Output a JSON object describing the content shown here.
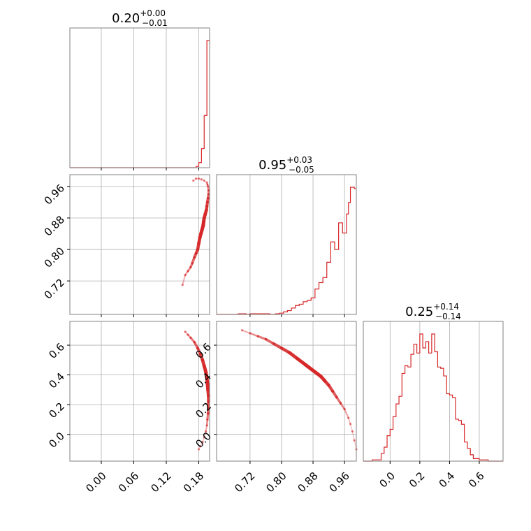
{
  "chart_data": [
    {
      "type": "histogram",
      "panel": "1,1",
      "title": {
        "value": "0.20",
        "plus": "+0.00",
        "minus": "−0.01"
      },
      "x_ticks": [
        "0.00",
        "0.06",
        "0.12",
        "0.18"
      ],
      "xlim": [
        -0.058,
        0.2
      ],
      "grid": true,
      "line_color": "#d62728",
      "bins": [
        {
          "x0": -0.058,
          "x1": 0.175,
          "h": 0.0
        },
        {
          "x0": 0.175,
          "x1": 0.18,
          "h": 0.01
        },
        {
          "x0": 0.18,
          "x1": 0.185,
          "h": 0.04
        },
        {
          "x0": 0.185,
          "x1": 0.19,
          "h": 0.15
        },
        {
          "x0": 0.19,
          "x1": 0.195,
          "h": 0.41
        },
        {
          "x0": 0.195,
          "x1": 0.2,
          "h": 1.0
        }
      ]
    },
    {
      "type": "histogram",
      "panel": "2,2",
      "title": {
        "value": "0.95",
        "plus": "+0.03",
        "minus": "−0.05"
      },
      "x_ticks": [
        "0.72",
        "0.80",
        "0.88",
        "0.96"
      ],
      "xlim": [
        0.635,
        0.99
      ],
      "grid": true,
      "line_color": "#d62728",
      "bins": [
        {
          "x0": 0.635,
          "x1": 0.69,
          "h": 0.0
        },
        {
          "x0": 0.69,
          "x1": 0.71,
          "h": 0.005
        },
        {
          "x0": 0.71,
          "x1": 0.72,
          "h": 0.0
        },
        {
          "x0": 0.72,
          "x1": 0.77,
          "h": 0.005
        },
        {
          "x0": 0.77,
          "x1": 0.785,
          "h": 0.0
        },
        {
          "x0": 0.785,
          "x1": 0.795,
          "h": 0.005
        },
        {
          "x0": 0.795,
          "x1": 0.805,
          "h": 0.01
        },
        {
          "x0": 0.805,
          "x1": 0.815,
          "h": 0.02
        },
        {
          "x0": 0.815,
          "x1": 0.825,
          "h": 0.03
        },
        {
          "x0": 0.825,
          "x1": 0.835,
          "h": 0.05
        },
        {
          "x0": 0.835,
          "x1": 0.845,
          "h": 0.07
        },
        {
          "x0": 0.845,
          "x1": 0.855,
          "h": 0.08
        },
        {
          "x0": 0.855,
          "x1": 0.865,
          "h": 0.1
        },
        {
          "x0": 0.865,
          "x1": 0.875,
          "h": 0.11
        },
        {
          "x0": 0.875,
          "x1": 0.885,
          "h": 0.13
        },
        {
          "x0": 0.885,
          "x1": 0.895,
          "h": 0.2
        },
        {
          "x0": 0.895,
          "x1": 0.905,
          "h": 0.25
        },
        {
          "x0": 0.905,
          "x1": 0.915,
          "h": 0.29
        },
        {
          "x0": 0.915,
          "x1": 0.925,
          "h": 0.41
        },
        {
          "x0": 0.925,
          "x1": 0.935,
          "h": 0.57
        },
        {
          "x0": 0.935,
          "x1": 0.945,
          "h": 0.51
        },
        {
          "x0": 0.945,
          "x1": 0.955,
          "h": 0.72
        },
        {
          "x0": 0.955,
          "x1": 0.965,
          "h": 0.64
        },
        {
          "x0": 0.965,
          "x1": 0.97,
          "h": 0.79
        },
        {
          "x0": 0.97,
          "x1": 0.975,
          "h": 0.88
        },
        {
          "x0": 0.975,
          "x1": 0.985,
          "h": 1.0
        },
        {
          "x0": 0.985,
          "x1": 0.99,
          "h": 0.99
        }
      ]
    },
    {
      "type": "histogram",
      "panel": "3,3",
      "title": {
        "value": "0.25",
        "plus": "+0.14",
        "minus": "−0.14"
      },
      "x_ticks": [
        "0.0",
        "0.2",
        "0.4",
        "0.6"
      ],
      "xlim": [
        -0.18,
        0.76
      ],
      "grid": true,
      "line_color": "#d62728",
      "bins": [
        {
          "x0": -0.18,
          "x1": -0.12,
          "h": 0.0
        },
        {
          "x0": -0.12,
          "x1": -0.06,
          "h": 0.01
        },
        {
          "x0": -0.06,
          "x1": -0.04,
          "h": 0.06
        },
        {
          "x0": -0.04,
          "x1": -0.02,
          "h": 0.11
        },
        {
          "x0": -0.02,
          "x1": 0.0,
          "h": 0.2
        },
        {
          "x0": 0.0,
          "x1": 0.02,
          "h": 0.25
        },
        {
          "x0": 0.02,
          "x1": 0.04,
          "h": 0.35
        },
        {
          "x0": 0.04,
          "x1": 0.06,
          "h": 0.45
        },
        {
          "x0": 0.06,
          "x1": 0.08,
          "h": 0.51
        },
        {
          "x0": 0.08,
          "x1": 0.1,
          "h": 0.69
        },
        {
          "x0": 0.1,
          "x1": 0.12,
          "h": 0.75
        },
        {
          "x0": 0.12,
          "x1": 0.14,
          "h": 0.74
        },
        {
          "x0": 0.14,
          "x1": 0.16,
          "h": 0.84
        },
        {
          "x0": 0.16,
          "x1": 0.18,
          "h": 0.92
        },
        {
          "x0": 0.18,
          "x1": 0.2,
          "h": 0.85
        },
        {
          "x0": 0.2,
          "x1": 0.22,
          "h": 1.0
        },
        {
          "x0": 0.22,
          "x1": 0.24,
          "h": 0.89
        },
        {
          "x0": 0.24,
          "x1": 0.26,
          "h": 0.94
        },
        {
          "x0": 0.26,
          "x1": 0.28,
          "h": 0.85
        },
        {
          "x0": 0.28,
          "x1": 0.3,
          "h": 1.0
        },
        {
          "x0": 0.3,
          "x1": 0.32,
          "h": 0.86
        },
        {
          "x0": 0.32,
          "x1": 0.34,
          "h": 0.74
        },
        {
          "x0": 0.34,
          "x1": 0.36,
          "h": 0.73
        },
        {
          "x0": 0.36,
          "x1": 0.38,
          "h": 0.67
        },
        {
          "x0": 0.38,
          "x1": 0.4,
          "h": 0.53
        },
        {
          "x0": 0.4,
          "x1": 0.42,
          "h": 0.52
        },
        {
          "x0": 0.42,
          "x1": 0.44,
          "h": 0.5
        },
        {
          "x0": 0.44,
          "x1": 0.46,
          "h": 0.33
        },
        {
          "x0": 0.46,
          "x1": 0.48,
          "h": 0.32
        },
        {
          "x0": 0.48,
          "x1": 0.5,
          "h": 0.29
        },
        {
          "x0": 0.5,
          "x1": 0.52,
          "h": 0.15
        },
        {
          "x0": 0.52,
          "x1": 0.54,
          "h": 0.1
        },
        {
          "x0": 0.54,
          "x1": 0.56,
          "h": 0.05
        },
        {
          "x0": 0.56,
          "x1": 0.6,
          "h": 0.02
        },
        {
          "x0": 0.6,
          "x1": 0.66,
          "h": 0.01
        },
        {
          "x0": 0.66,
          "x1": 0.76,
          "h": 0.0
        }
      ]
    },
    {
      "type": "scatter",
      "panel": "2,1",
      "x_ticks": [
        "0.00",
        "0.06",
        "0.12",
        "0.18"
      ],
      "y_ticks": [
        "0.72",
        "0.80",
        "0.88",
        "0.96"
      ],
      "xlim": [
        -0.058,
        0.2
      ],
      "ylim": [
        0.635,
        0.99
      ],
      "grid": true,
      "color": "#d62728",
      "points": [
        [
          0.15,
          0.71
        ],
        [
          0.155,
          0.735
        ],
        [
          0.16,
          0.745
        ],
        [
          0.165,
          0.755
        ],
        [
          0.168,
          0.765
        ],
        [
          0.172,
          0.78
        ],
        [
          0.175,
          0.79
        ],
        [
          0.178,
          0.8
        ],
        [
          0.18,
          0.815
        ],
        [
          0.182,
          0.83
        ],
        [
          0.184,
          0.84
        ],
        [
          0.186,
          0.85
        ],
        [
          0.188,
          0.86
        ],
        [
          0.189,
          0.87
        ],
        [
          0.19,
          0.88
        ],
        [
          0.192,
          0.89
        ],
        [
          0.194,
          0.9
        ],
        [
          0.195,
          0.91
        ],
        [
          0.196,
          0.92
        ],
        [
          0.197,
          0.93
        ],
        [
          0.198,
          0.94
        ],
        [
          0.198,
          0.95
        ],
        [
          0.197,
          0.96
        ],
        [
          0.196,
          0.965
        ],
        [
          0.195,
          0.97
        ],
        [
          0.19,
          0.975
        ],
        [
          0.185,
          0.978
        ],
        [
          0.18,
          0.98
        ],
        [
          0.175,
          0.98
        ],
        [
          0.17,
          0.975
        ]
      ]
    },
    {
      "type": "scatter",
      "panel": "3,1",
      "x_ticks": [
        "0.00",
        "0.06",
        "0.12",
        "0.18"
      ],
      "y_ticks": [
        "0.0",
        "0.2",
        "0.4",
        "0.6"
      ],
      "xlim": [
        -0.058,
        0.2
      ],
      "ylim": [
        -0.18,
        0.76
      ],
      "grid": true,
      "color": "#d62728",
      "points": [
        [
          0.155,
          0.69
        ],
        [
          0.16,
          0.67
        ],
        [
          0.165,
          0.65
        ],
        [
          0.172,
          0.62
        ],
        [
          0.178,
          0.58
        ],
        [
          0.183,
          0.54
        ],
        [
          0.187,
          0.5
        ],
        [
          0.19,
          0.46
        ],
        [
          0.193,
          0.42
        ],
        [
          0.195,
          0.38
        ],
        [
          0.196,
          0.34
        ],
        [
          0.197,
          0.3
        ],
        [
          0.198,
          0.26
        ],
        [
          0.198,
          0.22
        ],
        [
          0.198,
          0.18
        ],
        [
          0.197,
          0.14
        ],
        [
          0.196,
          0.1
        ],
        [
          0.195,
          0.06
        ],
        [
          0.193,
          0.02
        ],
        [
          0.19,
          -0.02
        ],
        [
          0.187,
          -0.05
        ],
        [
          0.183,
          -0.08
        ],
        [
          0.18,
          -0.1
        ]
      ]
    },
    {
      "type": "scatter",
      "panel": "3,2",
      "x_ticks": [
        "0.72",
        "0.80",
        "0.88",
        "0.96"
      ],
      "y_ticks": [
        "0.0",
        "0.2",
        "0.4",
        "0.6"
      ],
      "xlim": [
        0.635,
        0.99
      ],
      "ylim": [
        -0.18,
        0.76
      ],
      "grid": true,
      "color": "#d62728",
      "points": [
        [
          0.7,
          0.7
        ],
        [
          0.72,
          0.68
        ],
        [
          0.74,
          0.66
        ],
        [
          0.76,
          0.64
        ],
        [
          0.78,
          0.61
        ],
        [
          0.8,
          0.58
        ],
        [
          0.82,
          0.55
        ],
        [
          0.84,
          0.51
        ],
        [
          0.86,
          0.47
        ],
        [
          0.88,
          0.43
        ],
        [
          0.9,
          0.39
        ],
        [
          0.91,
          0.36
        ],
        [
          0.92,
          0.33
        ],
        [
          0.93,
          0.29
        ],
        [
          0.94,
          0.25
        ],
        [
          0.95,
          0.21
        ],
        [
          0.96,
          0.17
        ],
        [
          0.97,
          0.11
        ],
        [
          0.975,
          0.07
        ],
        [
          0.98,
          0.02
        ],
        [
          0.985,
          -0.04
        ],
        [
          0.99,
          -0.1
        ]
      ]
    }
  ]
}
